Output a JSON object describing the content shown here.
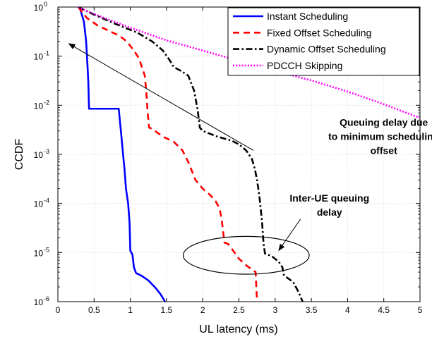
{
  "chart_data": {
    "type": "line",
    "title": "",
    "xlabel": "UL latency (ms)",
    "ylabel": "CCDF",
    "xlim": [
      0,
      5
    ],
    "ylim": [
      1e-06,
      1
    ],
    "yscale": "log",
    "grid": true,
    "legend_position": "top-right",
    "x_ticks": [
      0,
      0.5,
      1,
      1.5,
      2,
      2.5,
      3,
      3.5,
      4,
      4.5,
      5
    ],
    "x_tick_labels": [
      "0",
      "0.5",
      "1",
      "1.5",
      "2",
      "2.5",
      "3",
      "3.5",
      "4",
      "4.5",
      "5"
    ],
    "y_ticks": [
      1e-06,
      1e-05,
      0.0001,
      0.001,
      0.01,
      0.1,
      1
    ],
    "y_tick_labels": [
      {
        "base": "10",
        "exp": "-6"
      },
      {
        "base": "10",
        "exp": "-5"
      },
      {
        "base": "10",
        "exp": "-4"
      },
      {
        "base": "10",
        "exp": "-3"
      },
      {
        "base": "10",
        "exp": "-2"
      },
      {
        "base": "10",
        "exp": "-1"
      },
      {
        "base": "10",
        "exp": "0"
      }
    ],
    "series": [
      {
        "name": "Instant Scheduling",
        "color": "#0000ff",
        "dash": "solid",
        "points": [
          [
            0.3,
            1
          ],
          [
            0.36,
            0.5
          ],
          [
            0.39,
            0.2
          ],
          [
            0.41,
            0.06
          ],
          [
            0.42,
            0.03
          ],
          [
            0.43,
            0.0085
          ],
          [
            0.5,
            0.0085
          ],
          [
            0.7,
            0.0085
          ],
          [
            0.84,
            0.0085
          ],
          [
            0.85,
            0.006
          ],
          [
            0.87,
            0.003
          ],
          [
            0.9,
            0.001
          ],
          [
            0.92,
            0.0005
          ],
          [
            0.94,
            0.0002
          ],
          [
            0.97,
            0.0001
          ],
          [
            0.99,
            4e-05
          ],
          [
            1.0,
            1.1e-05
          ],
          [
            1.03,
            9e-06
          ],
          [
            1.05,
            5e-06
          ],
          [
            1.08,
            3.8e-06
          ],
          [
            1.15,
            3.4e-06
          ],
          [
            1.25,
            2.7e-06
          ],
          [
            1.35,
            1.9e-06
          ],
          [
            1.42,
            1.4e-06
          ],
          [
            1.48,
            1e-06
          ]
        ]
      },
      {
        "name": "Fixed Offset Scheduling",
        "color": "#ff0000",
        "dash": "dashed",
        "points": [
          [
            0.28,
            1
          ],
          [
            0.4,
            0.6
          ],
          [
            0.55,
            0.42
          ],
          [
            0.7,
            0.33
          ],
          [
            0.85,
            0.26
          ],
          [
            0.95,
            0.2
          ],
          [
            1.05,
            0.13
          ],
          [
            1.12,
            0.09
          ],
          [
            1.16,
            0.06
          ],
          [
            1.2,
            0.04
          ],
          [
            1.22,
            0.02
          ],
          [
            1.24,
            0.007
          ],
          [
            1.26,
            0.0035
          ],
          [
            1.3,
            0.0033
          ],
          [
            1.45,
            0.0023
          ],
          [
            1.6,
            0.0018
          ],
          [
            1.72,
            0.0012
          ],
          [
            1.8,
            0.0007
          ],
          [
            1.9,
            0.0003
          ],
          [
            2.0,
            0.0002
          ],
          [
            2.1,
            0.00015
          ],
          [
            2.18,
            0.00011
          ],
          [
            2.23,
            8e-05
          ],
          [
            2.26,
            5e-05
          ],
          [
            2.28,
            2.8e-05
          ],
          [
            2.3,
            1.6e-05
          ],
          [
            2.35,
            1.5e-05
          ],
          [
            2.4,
            1.2e-05
          ],
          [
            2.5,
            7.5e-06
          ],
          [
            2.6,
            5.5e-06
          ],
          [
            2.68,
            4.5e-06
          ],
          [
            2.73,
            4e-06
          ],
          [
            2.74,
            2e-06
          ],
          [
            2.75,
            1e-06
          ]
        ]
      },
      {
        "name": "Dynamic Offset Scheduling",
        "color": "#000000",
        "dash": "dashdot",
        "points": [
          [
            0.28,
            1
          ],
          [
            0.5,
            0.7
          ],
          [
            0.8,
            0.45
          ],
          [
            1.1,
            0.3
          ],
          [
            1.3,
            0.2
          ],
          [
            1.45,
            0.13
          ],
          [
            1.55,
            0.08
          ],
          [
            1.6,
            0.06
          ],
          [
            1.7,
            0.05
          ],
          [
            1.8,
            0.04
          ],
          [
            1.88,
            0.02
          ],
          [
            1.93,
            0.008
          ],
          [
            1.96,
            0.0035
          ],
          [
            2.0,
            0.003
          ],
          [
            2.2,
            0.0023
          ],
          [
            2.4,
            0.0019
          ],
          [
            2.5,
            0.0016
          ],
          [
            2.6,
            0.0012
          ],
          [
            2.68,
            0.0008
          ],
          [
            2.72,
            0.0005
          ],
          [
            2.75,
            0.0003
          ],
          [
            2.78,
            0.00015
          ],
          [
            2.8,
            8e-05
          ],
          [
            2.82,
            4e-05
          ],
          [
            2.84,
            1.5e-05
          ],
          [
            2.86,
            9.5e-06
          ],
          [
            2.95,
            8.5e-06
          ],
          [
            3.05,
            6.5e-06
          ],
          [
            3.1,
            5e-06
          ],
          [
            3.12,
            3.5e-06
          ],
          [
            3.15,
            3.2e-06
          ],
          [
            3.25,
            2.5e-06
          ],
          [
            3.32,
            1.6e-06
          ],
          [
            3.38,
            1e-06
          ]
        ]
      },
      {
        "name": "PDCCH Skipping",
        "color": "#ff00ff",
        "dash": "dotted",
        "points": [
          [
            0.28,
            1
          ],
          [
            0.5,
            0.72
          ],
          [
            1.0,
            0.38
          ],
          [
            1.5,
            0.21
          ],
          [
            2.0,
            0.13
          ],
          [
            2.5,
            0.08
          ],
          [
            3.0,
            0.05
          ],
          [
            3.5,
            0.032
          ],
          [
            4.0,
            0.019
          ],
          [
            4.5,
            0.0105
          ],
          [
            5.0,
            0.0055
          ]
        ]
      }
    ],
    "annotations": [
      {
        "id": "queuing-delay",
        "lines": [
          "Queuing delay due",
          "to minimum scheduling",
          "offset"
        ],
        "text_anchor": [
          4.5,
          0.0038
        ],
        "arrow_from": [
          2.7,
          0.0012
        ],
        "arrow_to": [
          0.15,
          0.18
        ]
      },
      {
        "id": "inter-ue",
        "lines": [
          "Inter-UE queuing",
          "delay"
        ],
        "text_anchor": [
          3.75,
          0.00011
        ],
        "arrow_from": [
          3.35,
          4.8e-05
        ],
        "arrow_to": [
          3.05,
          1.1e-05
        ]
      }
    ],
    "ellipse": {
      "cx": 2.6,
      "cy": 8.8e-06,
      "rx": 0.87,
      "ry_decades_low": 5.56,
      "ry_decades_high": 4.79
    }
  }
}
